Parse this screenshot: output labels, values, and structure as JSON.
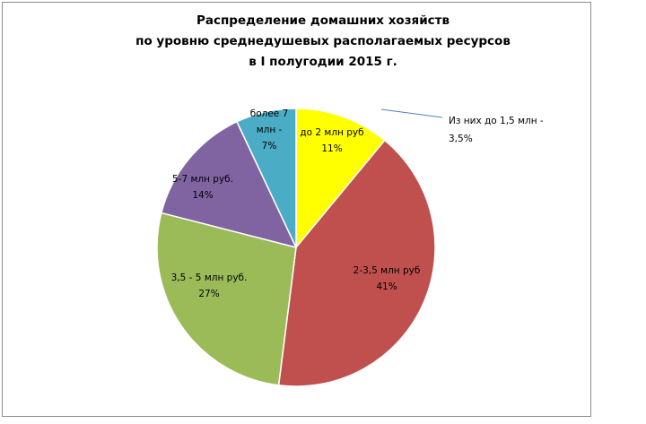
{
  "chart_data": {
    "type": "pie",
    "title_lines": [
      "Распределение домашних хозяйств",
      "по уровню  среднедушевых располагаемых ресурсов",
      "в I полугодии 2015 г."
    ],
    "slices": [
      {
        "label_lines": [
          "до 2 млн руб",
          "11%"
        ],
        "value": 11,
        "color": "#ffff00"
      },
      {
        "label_lines": [
          "2-3,5 млн руб",
          "41%"
        ],
        "value": 41,
        "color": "#c0504d"
      },
      {
        "label_lines": [
          "3,5 - 5 млн руб.",
          "27%"
        ],
        "value": 27,
        "color": "#9bbb59"
      },
      {
        "label_lines": [
          "5-7 млн руб.",
          "14%"
        ],
        "value": 14,
        "color": "#8064a2"
      },
      {
        "label_lines": [
          "более 7",
          "млн -",
          "7%"
        ],
        "value": 7,
        "color": "#4bacc6"
      }
    ],
    "annotation_lines": [
      "Из них до 1,5 млн  -",
      "3,5%"
    ]
  }
}
